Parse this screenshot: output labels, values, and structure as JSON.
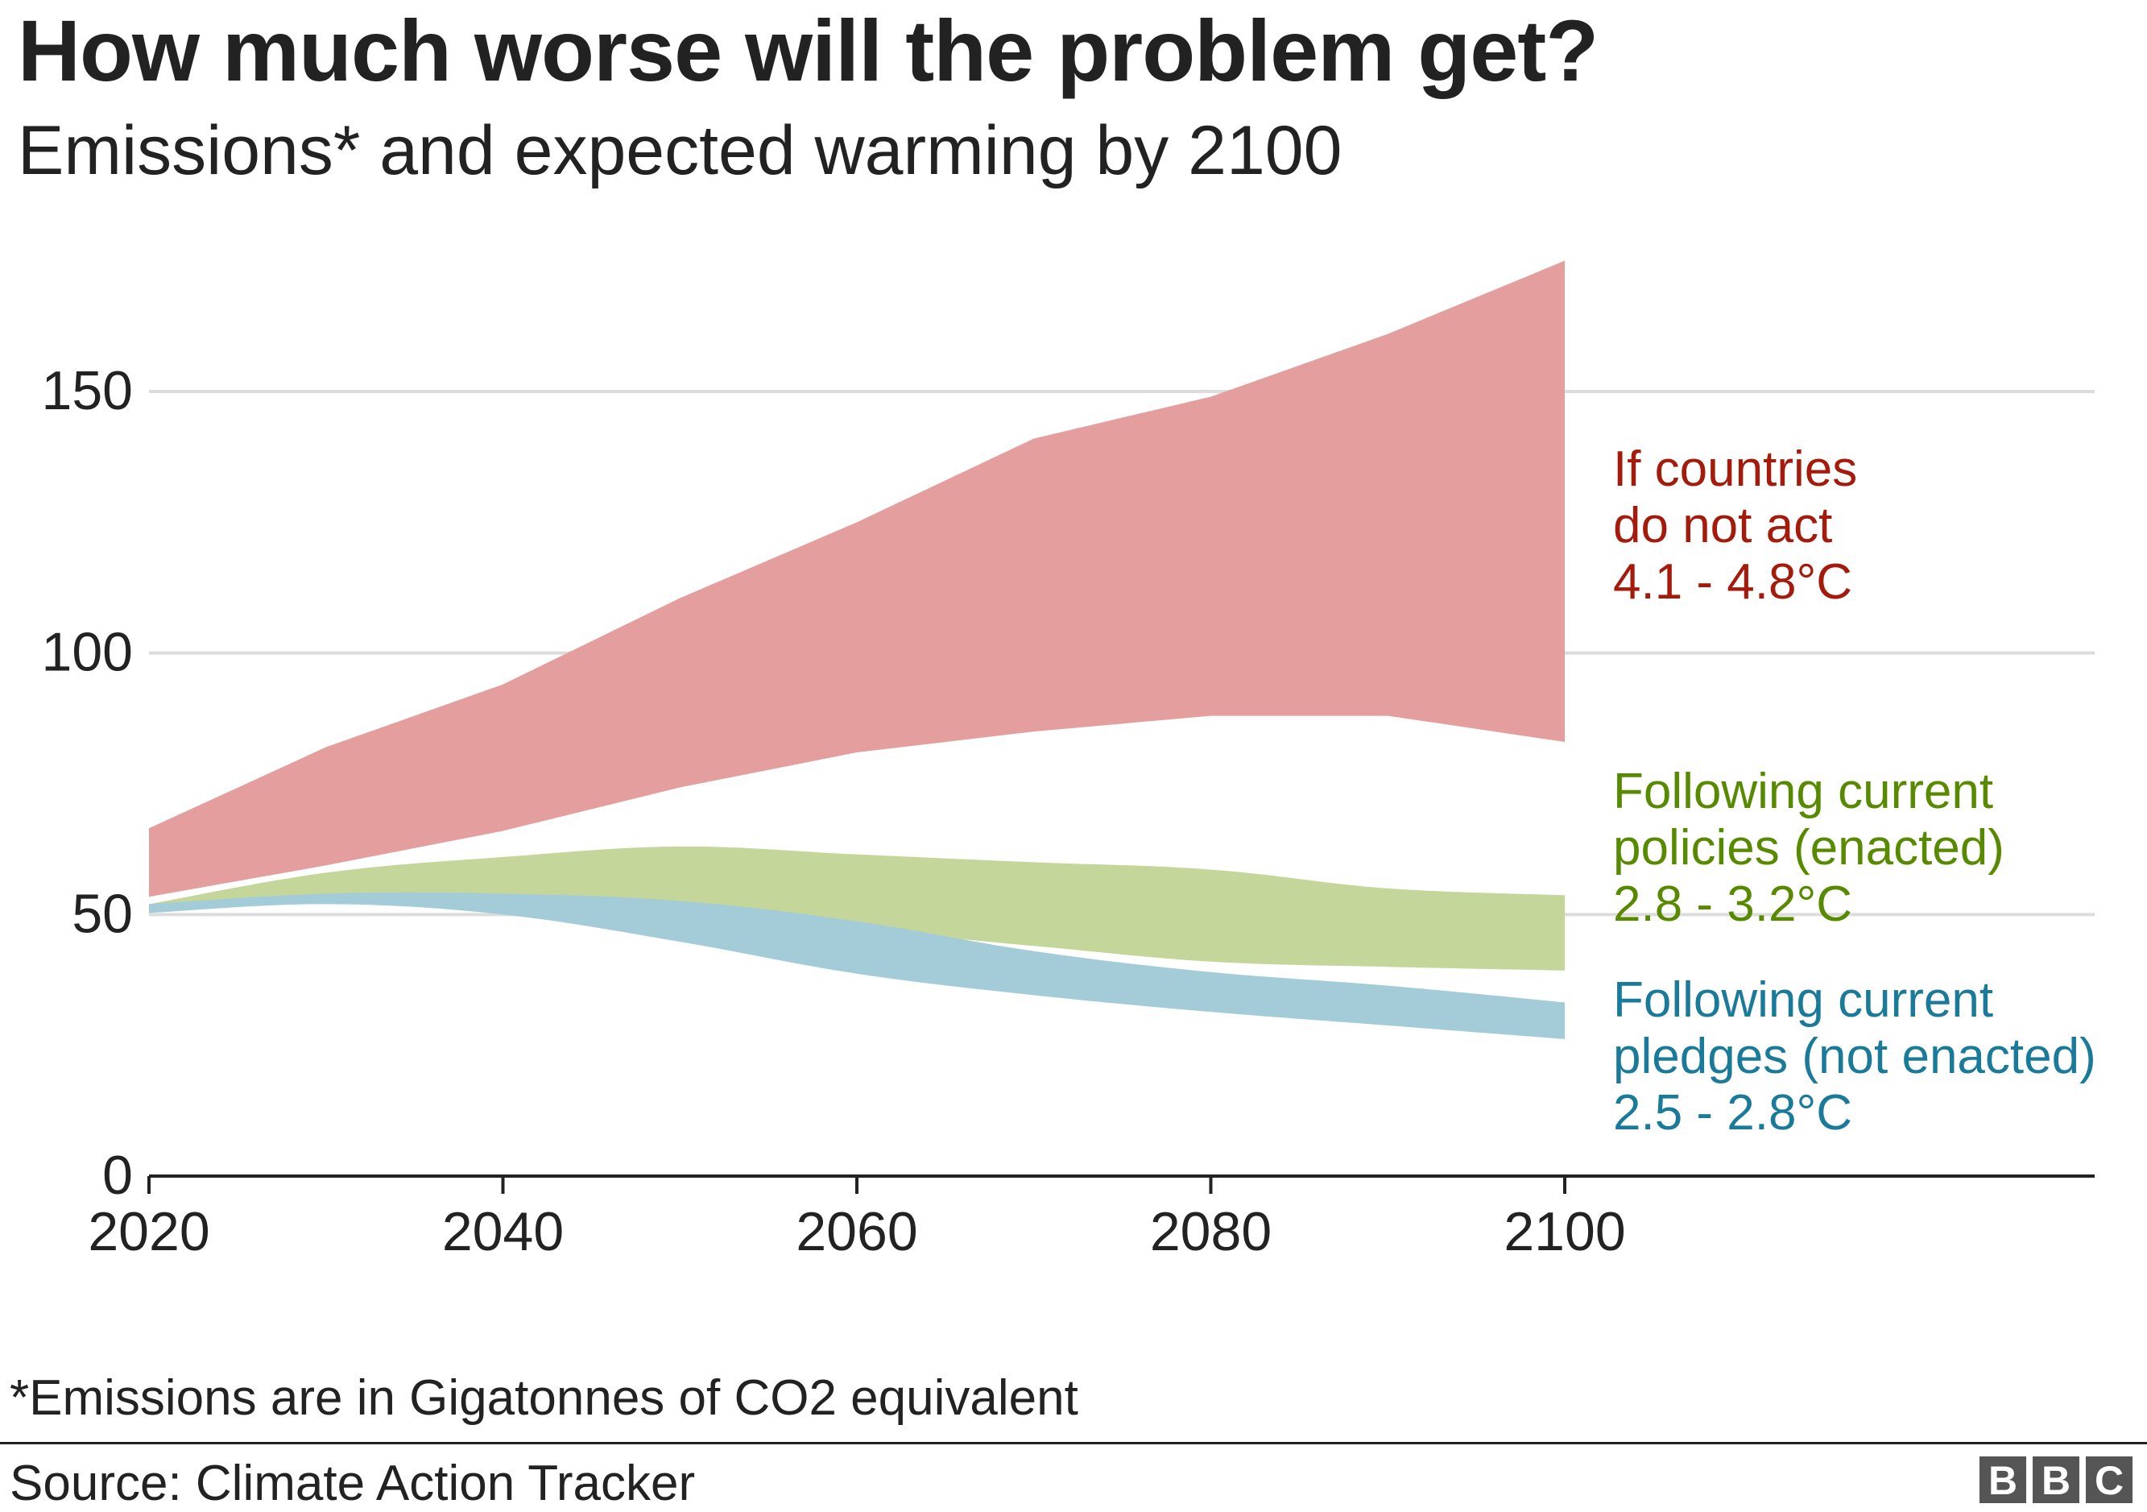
{
  "title": "How much worse will the problem get?",
  "subtitle": "Emissions* and expected warming by 2100",
  "footnote": "*Emissions are in Gigatonnes of CO2 equivalent",
  "source": "Source: Climate Action Tracker",
  "logo": "BBC",
  "chart_data": {
    "type": "area",
    "x": [
      2020,
      2030,
      2040,
      2050,
      2060,
      2070,
      2080,
      2090,
      2100
    ],
    "xlim": [
      2020,
      2100
    ],
    "ylim": [
      0,
      175
    ],
    "x_ticks": [
      "2020",
      "2040",
      "2060",
      "2080",
      "2100"
    ],
    "y_ticks": [
      "0",
      "50",
      "100",
      "150"
    ],
    "grid": "horizontal",
    "series": [
      {
        "name": "If countries do not act",
        "label": [
          "If countries",
          "do not act",
          "4.1 - 4.8°C"
        ],
        "color": "#e49e9e",
        "label_color": "#a51b0b",
        "upper": [
          66.5,
          82,
          94,
          110.5,
          125,
          141,
          149,
          161,
          175
        ],
        "lower": [
          53.4,
          59.4,
          66,
          74.3,
          81,
          85,
          88,
          88,
          83
        ]
      },
      {
        "name": "Following current policies (enacted)",
        "label": [
          "Following current",
          "policies (enacted)",
          "2.8 - 3.2°C"
        ],
        "color": "#c5d69a",
        "label_color": "#588a00",
        "upper": [
          52,
          58,
          61,
          63,
          61.5,
          60,
          58.6,
          55,
          53.7
        ],
        "lower": [
          51,
          53,
          51,
          49,
          47,
          44,
          41,
          40,
          39.3
        ]
      },
      {
        "name": "Following current pledges (not enacted)",
        "label": [
          "Following current",
          "pledges (not enacted)",
          "2.5 - 2.8°C"
        ],
        "color": "#a3ccd8",
        "label_color": "#1a7a9a",
        "upper": [
          52,
          54,
          54,
          52.6,
          48.7,
          43,
          39,
          36.4,
          33.2
        ],
        "lower": [
          50.3,
          52,
          50,
          44.8,
          38.7,
          34.6,
          31.4,
          28.8,
          26.2
        ]
      }
    ]
  }
}
